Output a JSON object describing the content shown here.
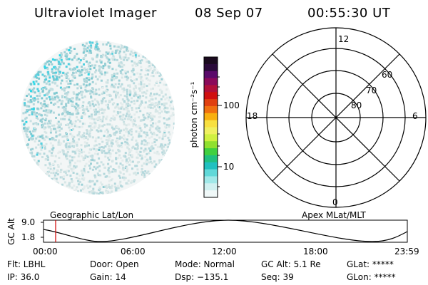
{
  "header": {
    "title": "Ultraviolet Imager",
    "date": "08 Sep 07",
    "time": "00:55:30 UT"
  },
  "colorbar": {
    "label": "photon cm⁻²s⁻¹",
    "ticks": [
      "100",
      "10"
    ]
  },
  "polar_plot": {
    "mlt_labels": {
      "top": "12",
      "bottom": "0",
      "left": "18",
      "right": "6"
    },
    "lat_labels": [
      "60",
      "70",
      "80"
    ]
  },
  "timeline": {
    "y_axis_label": "GC Alt",
    "y_ticks": [
      "9.0",
      "1.8"
    ],
    "left_caption": "Geographic Lat/Lon",
    "right_caption": "Apex  MLat/MLT",
    "x_ticks": [
      "00:00",
      "06:00",
      "12:00",
      "18:00",
      "23:59"
    ],
    "marker_time": "00:55:30"
  },
  "info": {
    "row1": [
      "Flt: LBHL",
      "Door: Open",
      "Mode: Normal",
      "GC Alt: 5.1 Re",
      "GLat: *****"
    ],
    "row2": [
      "IP: 36.0",
      "Gain: 14",
      "Dsp: −135.1",
      "Seq: 39",
      "GLon: *****"
    ]
  }
}
